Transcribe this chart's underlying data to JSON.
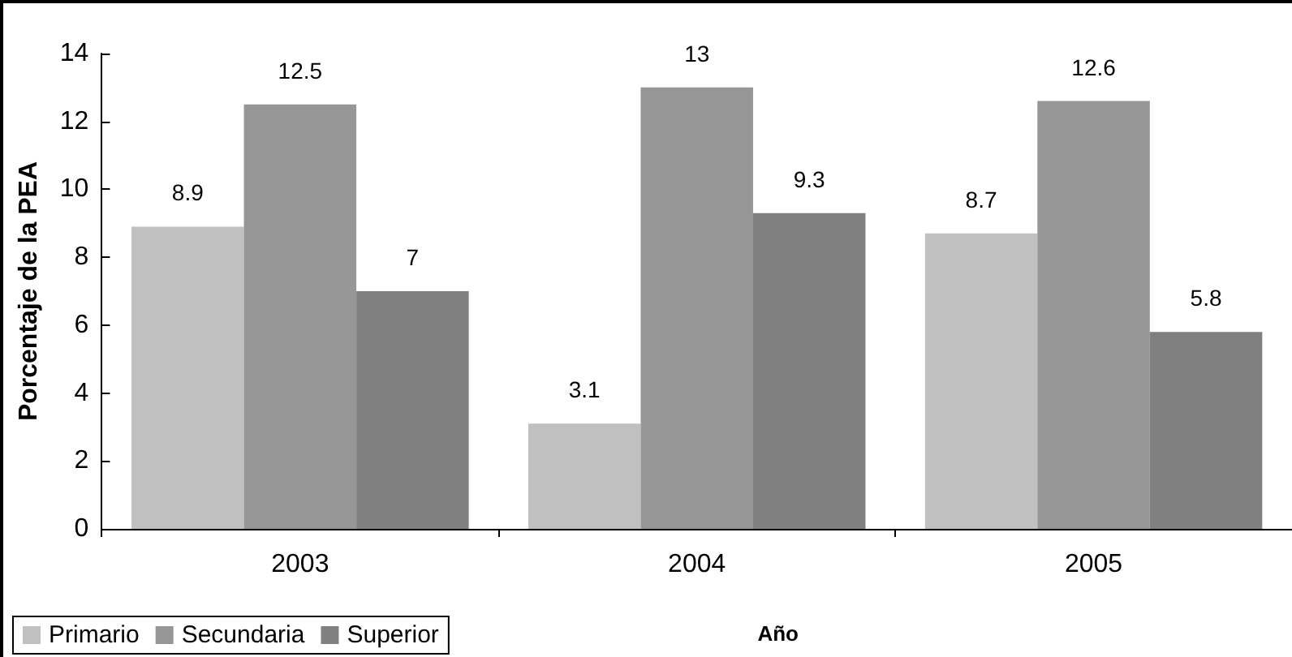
{
  "chart_data": {
    "type": "bar",
    "categories": [
      "2003",
      "2004",
      "2005"
    ],
    "series": [
      {
        "name": "Primario",
        "color": "#c0c0c0",
        "values": [
          8.9,
          3.1,
          8.7
        ]
      },
      {
        "name": "Secundaria",
        "color": "#969696",
        "values": [
          12.5,
          13,
          12.6
        ]
      },
      {
        "name": "Superior",
        "color": "#808080",
        "values": [
          7,
          9.3,
          5.8
        ]
      }
    ],
    "xlabel": "Año",
    "ylabel": "Porcentaje de la PEA",
    "ylim": [
      0,
      14
    ],
    "yticks": [
      0,
      2,
      4,
      6,
      8,
      10,
      12,
      14
    ],
    "data_labels": true,
    "grid": false,
    "legend": "bottom left"
  }
}
